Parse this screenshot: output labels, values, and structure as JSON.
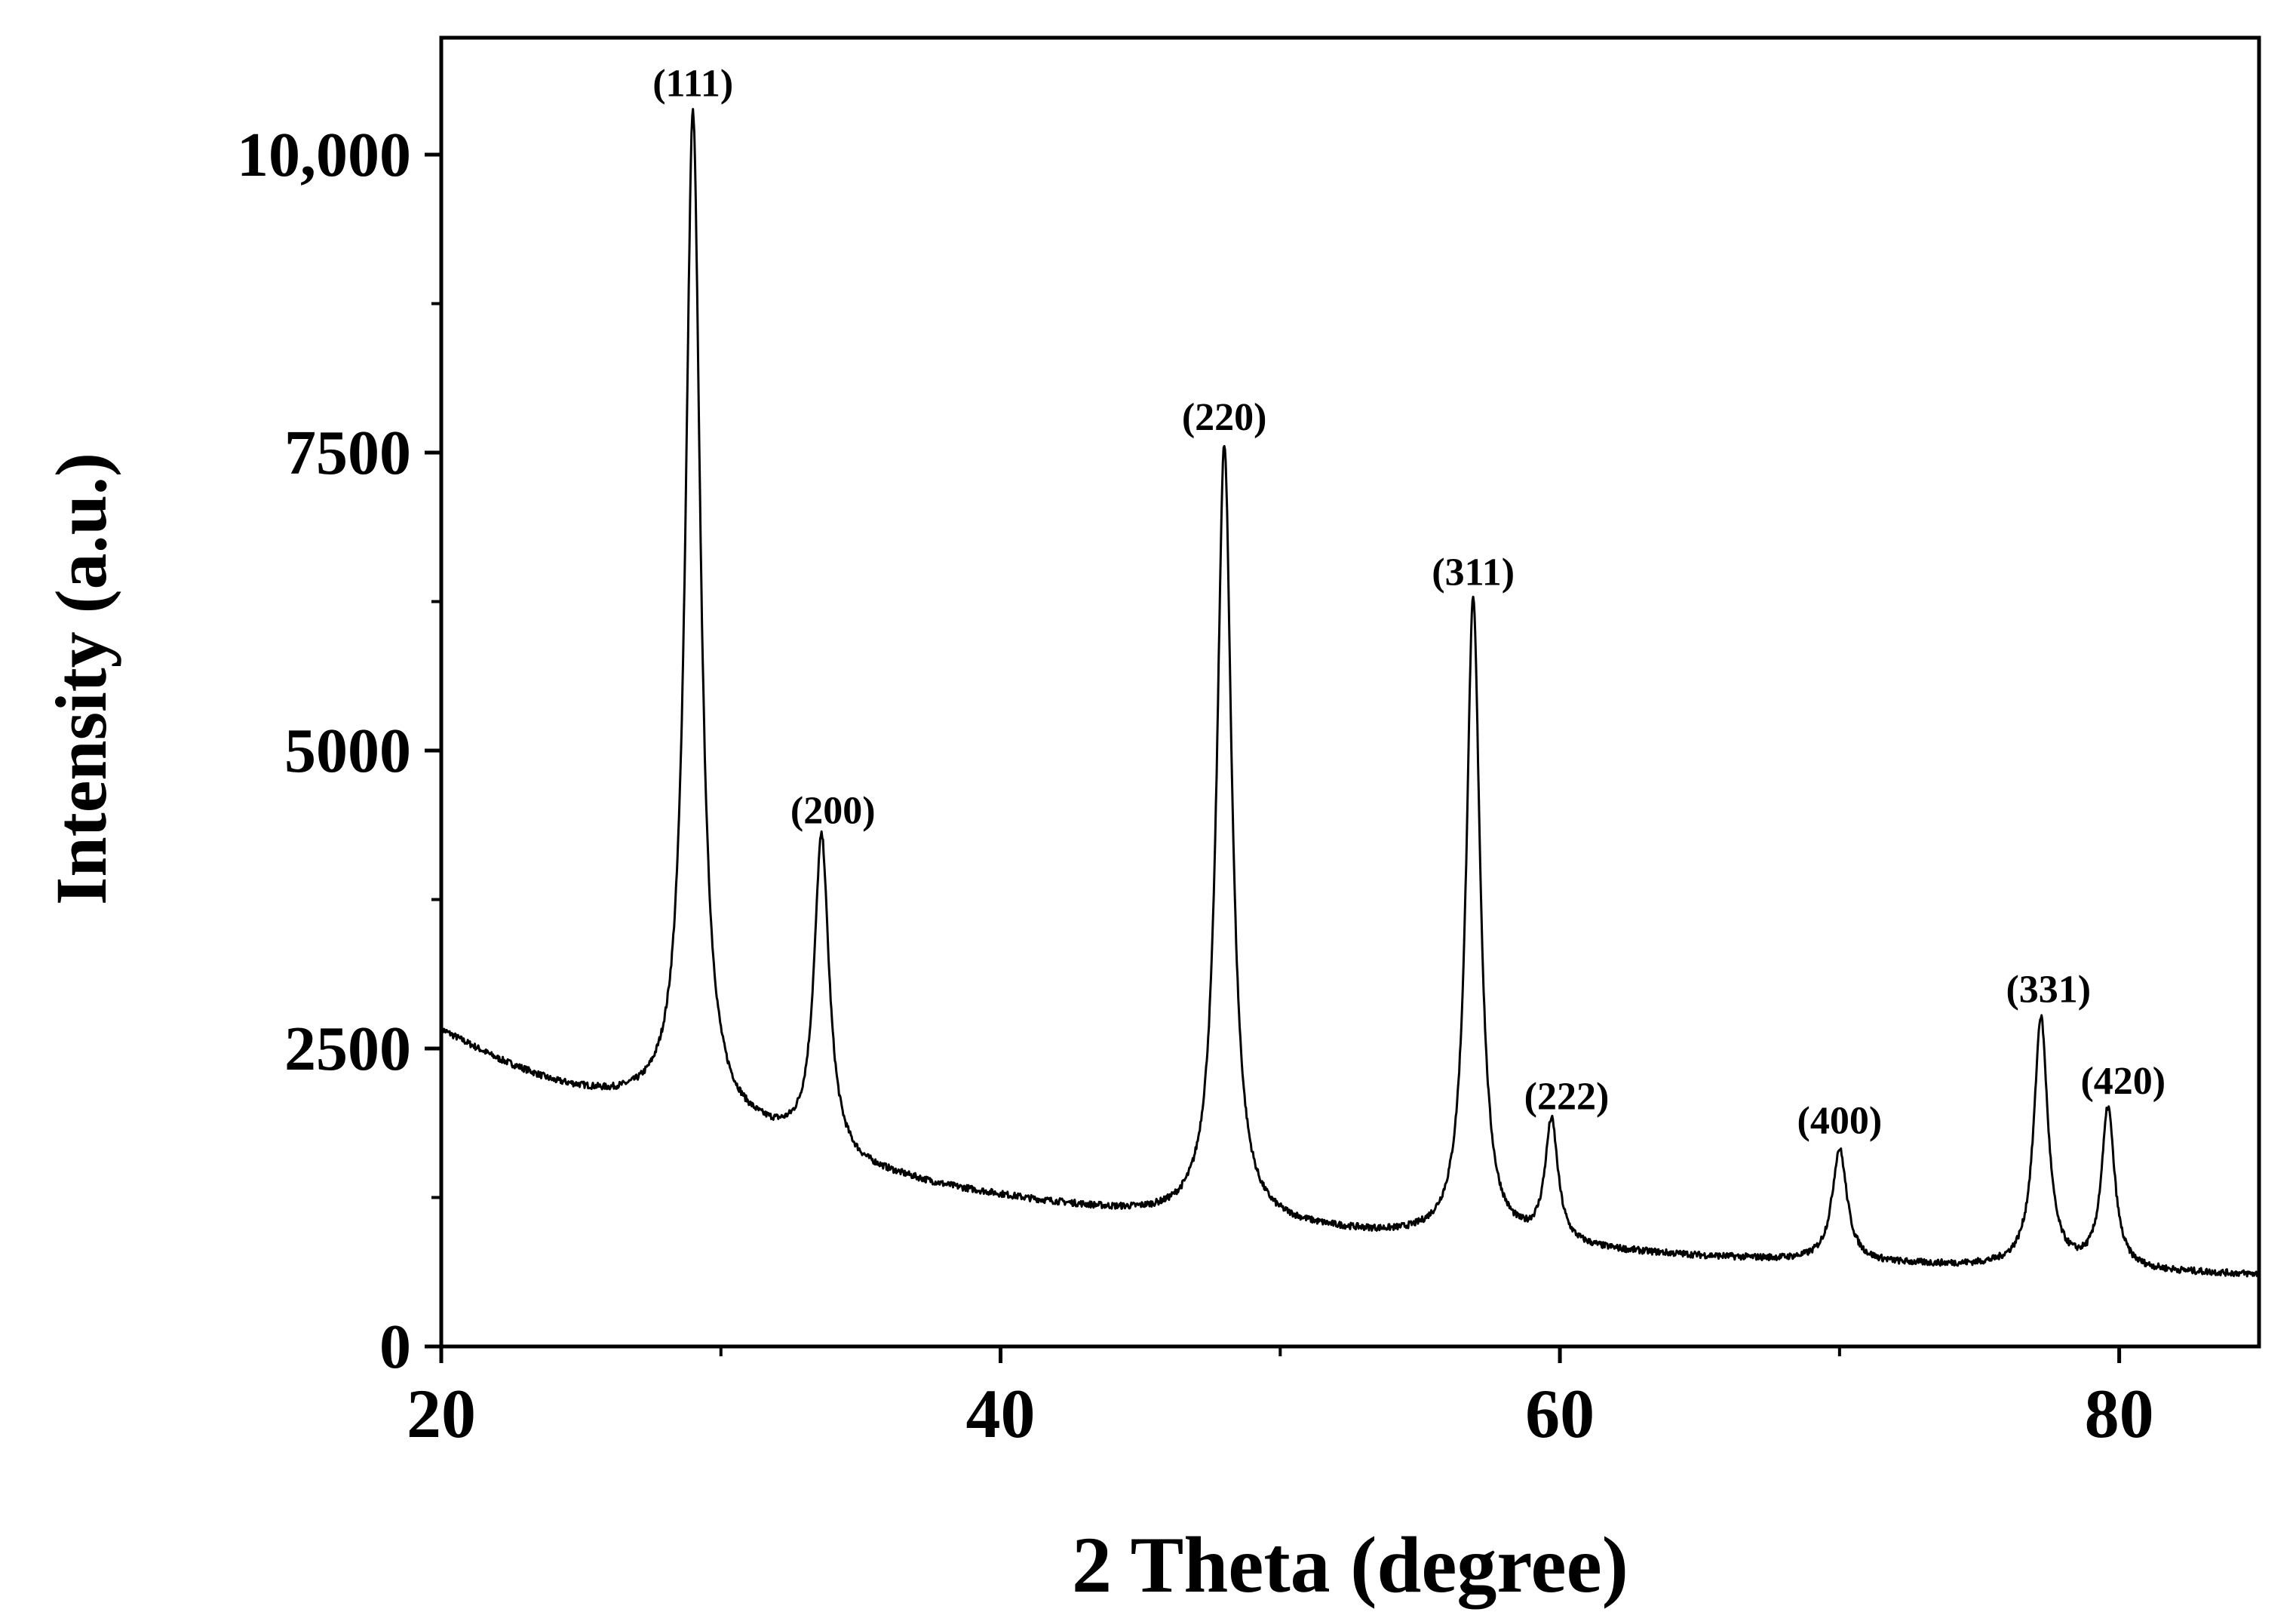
{
  "chart_data": {
    "type": "line",
    "title": "",
    "xlabel": "2 Theta (degree)",
    "ylabel": "Intensity (a.u.)",
    "xlim": [
      20,
      85
    ],
    "ylim": [
      0,
      10000
    ],
    "x_ticks": [
      20,
      40,
      60,
      80
    ],
    "x_tick_labels": [
      "20",
      "40",
      "60",
      "80"
    ],
    "y_ticks": [
      0,
      2500,
      5000,
      7500,
      10000
    ],
    "y_tick_labels": [
      "0",
      "2500",
      "5000",
      "7500",
      "10,000"
    ],
    "grid": false,
    "legend": "none",
    "line_color": "#000000",
    "background": [
      [
        20,
        2650
      ],
      [
        22,
        2400
      ],
      [
        24,
        2200
      ],
      [
        26,
        2080
      ],
      [
        27.5,
        2020
      ],
      [
        29,
        1950
      ],
      [
        31,
        1800
      ],
      [
        33,
        1650
      ],
      [
        35,
        1480
      ],
      [
        38,
        1330
      ],
      [
        41,
        1220
      ],
      [
        44,
        1130
      ],
      [
        46,
        1080
      ],
      [
        48,
        1040
      ],
      [
        50,
        1000
      ],
      [
        52,
        960
      ],
      [
        54,
        920
      ],
      [
        56,
        890
      ],
      [
        58,
        860
      ],
      [
        60,
        820
      ],
      [
        62,
        790
      ],
      [
        65,
        750
      ],
      [
        68,
        720
      ],
      [
        70,
        700
      ],
      [
        73,
        680
      ],
      [
        76,
        660
      ],
      [
        79,
        640
      ],
      [
        82,
        620
      ],
      [
        85,
        600
      ]
    ],
    "peaks": [
      {
        "label": "(111)",
        "x": 29.0,
        "y": 10350
      },
      {
        "label": "(200)",
        "x": 33.6,
        "y": 4250
      },
      {
        "label": "(220)",
        "x": 48.0,
        "y": 7550
      },
      {
        "label": "(311)",
        "x": 56.9,
        "y": 6250
      },
      {
        "label": "(222)",
        "x": 59.7,
        "y": 1850
      },
      {
        "label": "(400)",
        "x": 70.0,
        "y": 1650
      },
      {
        "label": "(331)",
        "x": 77.2,
        "y": 2750
      },
      {
        "label": "(420)",
        "x": 79.6,
        "y": 1980
      }
    ]
  }
}
